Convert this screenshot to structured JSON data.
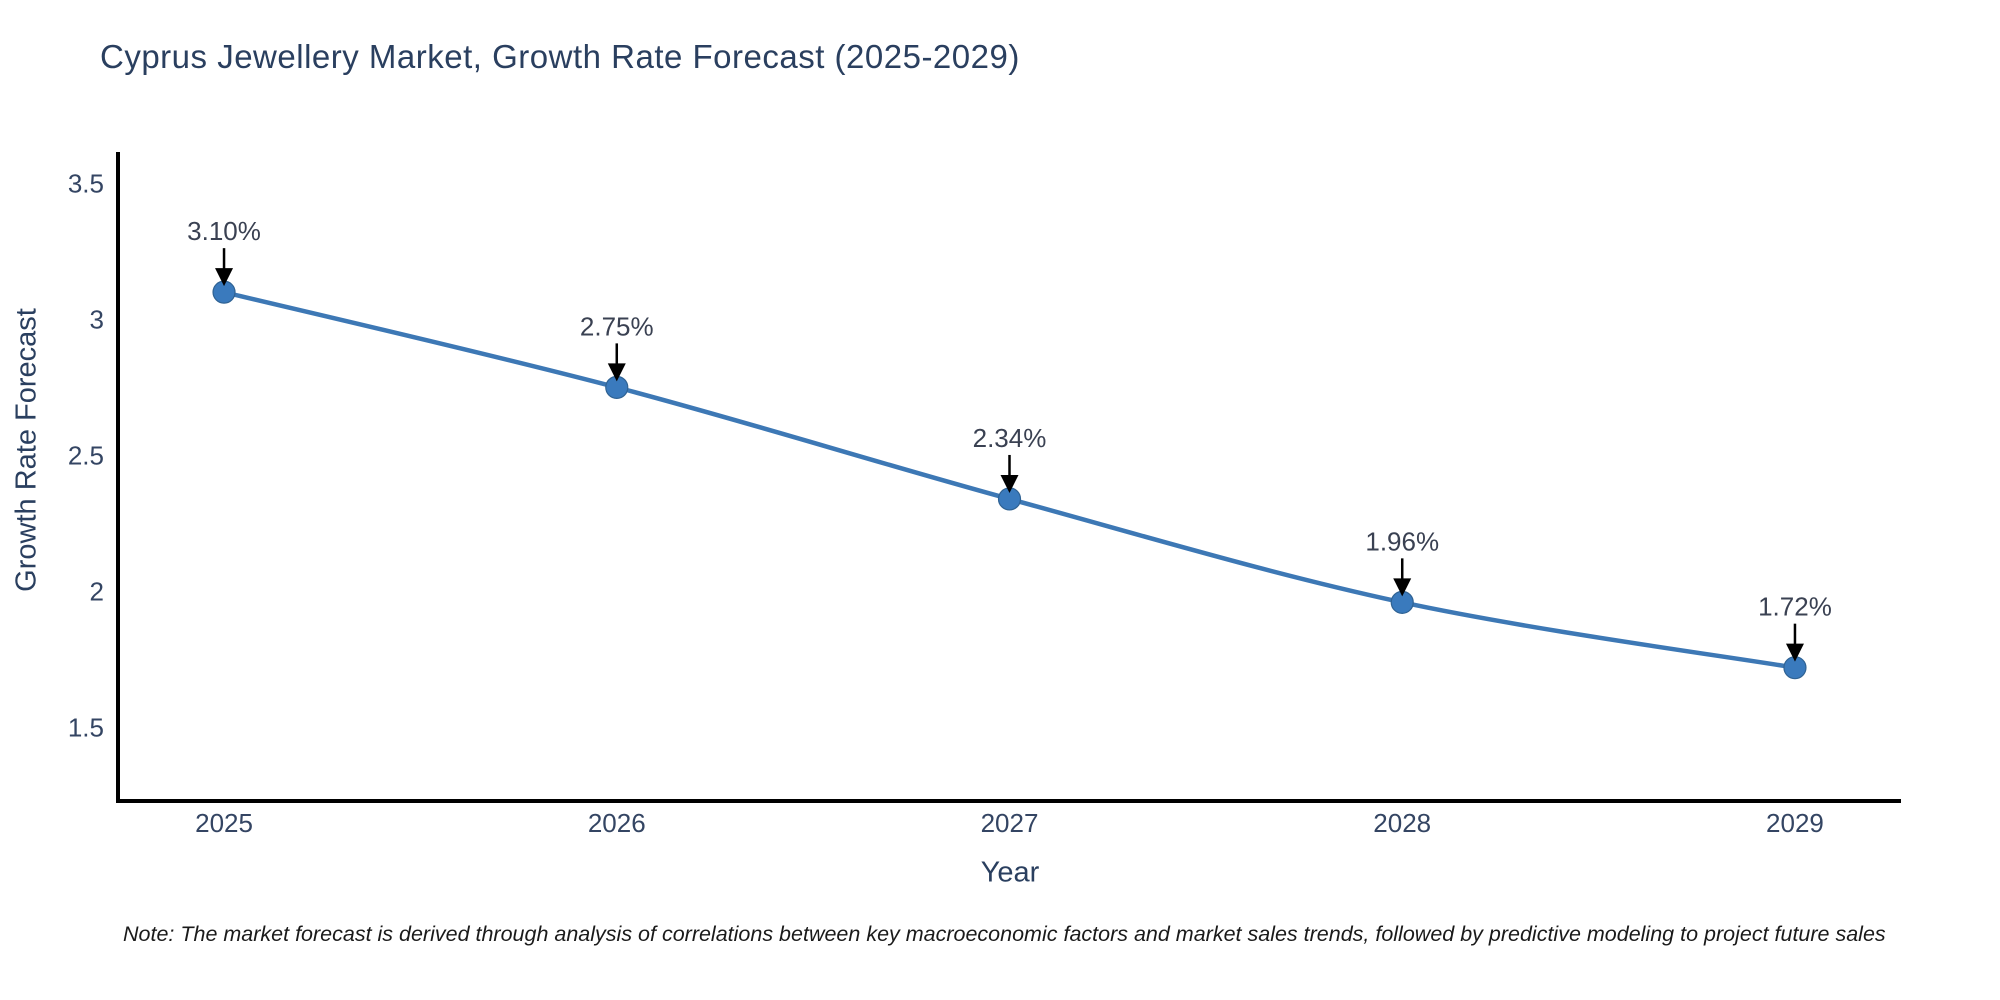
{
  "title": "Cyprus Jewellery Market, Growth Rate Forecast (2025-2029)",
  "note": "Note: The market forecast is derived through analysis of correlations between key macroeconomic factors and market sales trends, followed by predictive modeling to project future sales",
  "chart_data": {
    "type": "line",
    "title": "Cyprus Jewellery Market, Growth Rate Forecast (2025-2029)",
    "x": [
      2025,
      2026,
      2027,
      2028,
      2029
    ],
    "values": [
      3.1,
      2.75,
      2.34,
      1.96,
      1.72
    ],
    "point_labels": [
      "3.10%",
      "2.75%",
      "2.34%",
      "1.96%",
      "1.72%"
    ],
    "xlabel": "Year",
    "ylabel": "Growth Rate Forecast",
    "xtick_labels": [
      "2025",
      "2026",
      "2027",
      "2028",
      "2029"
    ],
    "yticks": [
      1.5,
      2,
      2.5,
      3,
      3.5
    ],
    "ytick_labels": [
      "1.5",
      "2",
      "2.5",
      "3",
      "3.5"
    ],
    "xlim": [
      2024.73,
      2029.27
    ],
    "ylim": [
      1.23,
      3.615
    ],
    "grid": false,
    "legend": "none",
    "annotations": "value labels with downward arrows above each point",
    "line_color": "#3d78b5",
    "marker_color": "#3a7abd",
    "marker_edge_color": "#2f6293",
    "arrow_color": "#000000",
    "axis_color": "#000000"
  },
  "colors": {
    "title": "#2a3f5f",
    "tick_label": "#344563",
    "annotation_label": "#3a4152",
    "note_text": "#1a1a1a",
    "background": "#ffffff"
  }
}
